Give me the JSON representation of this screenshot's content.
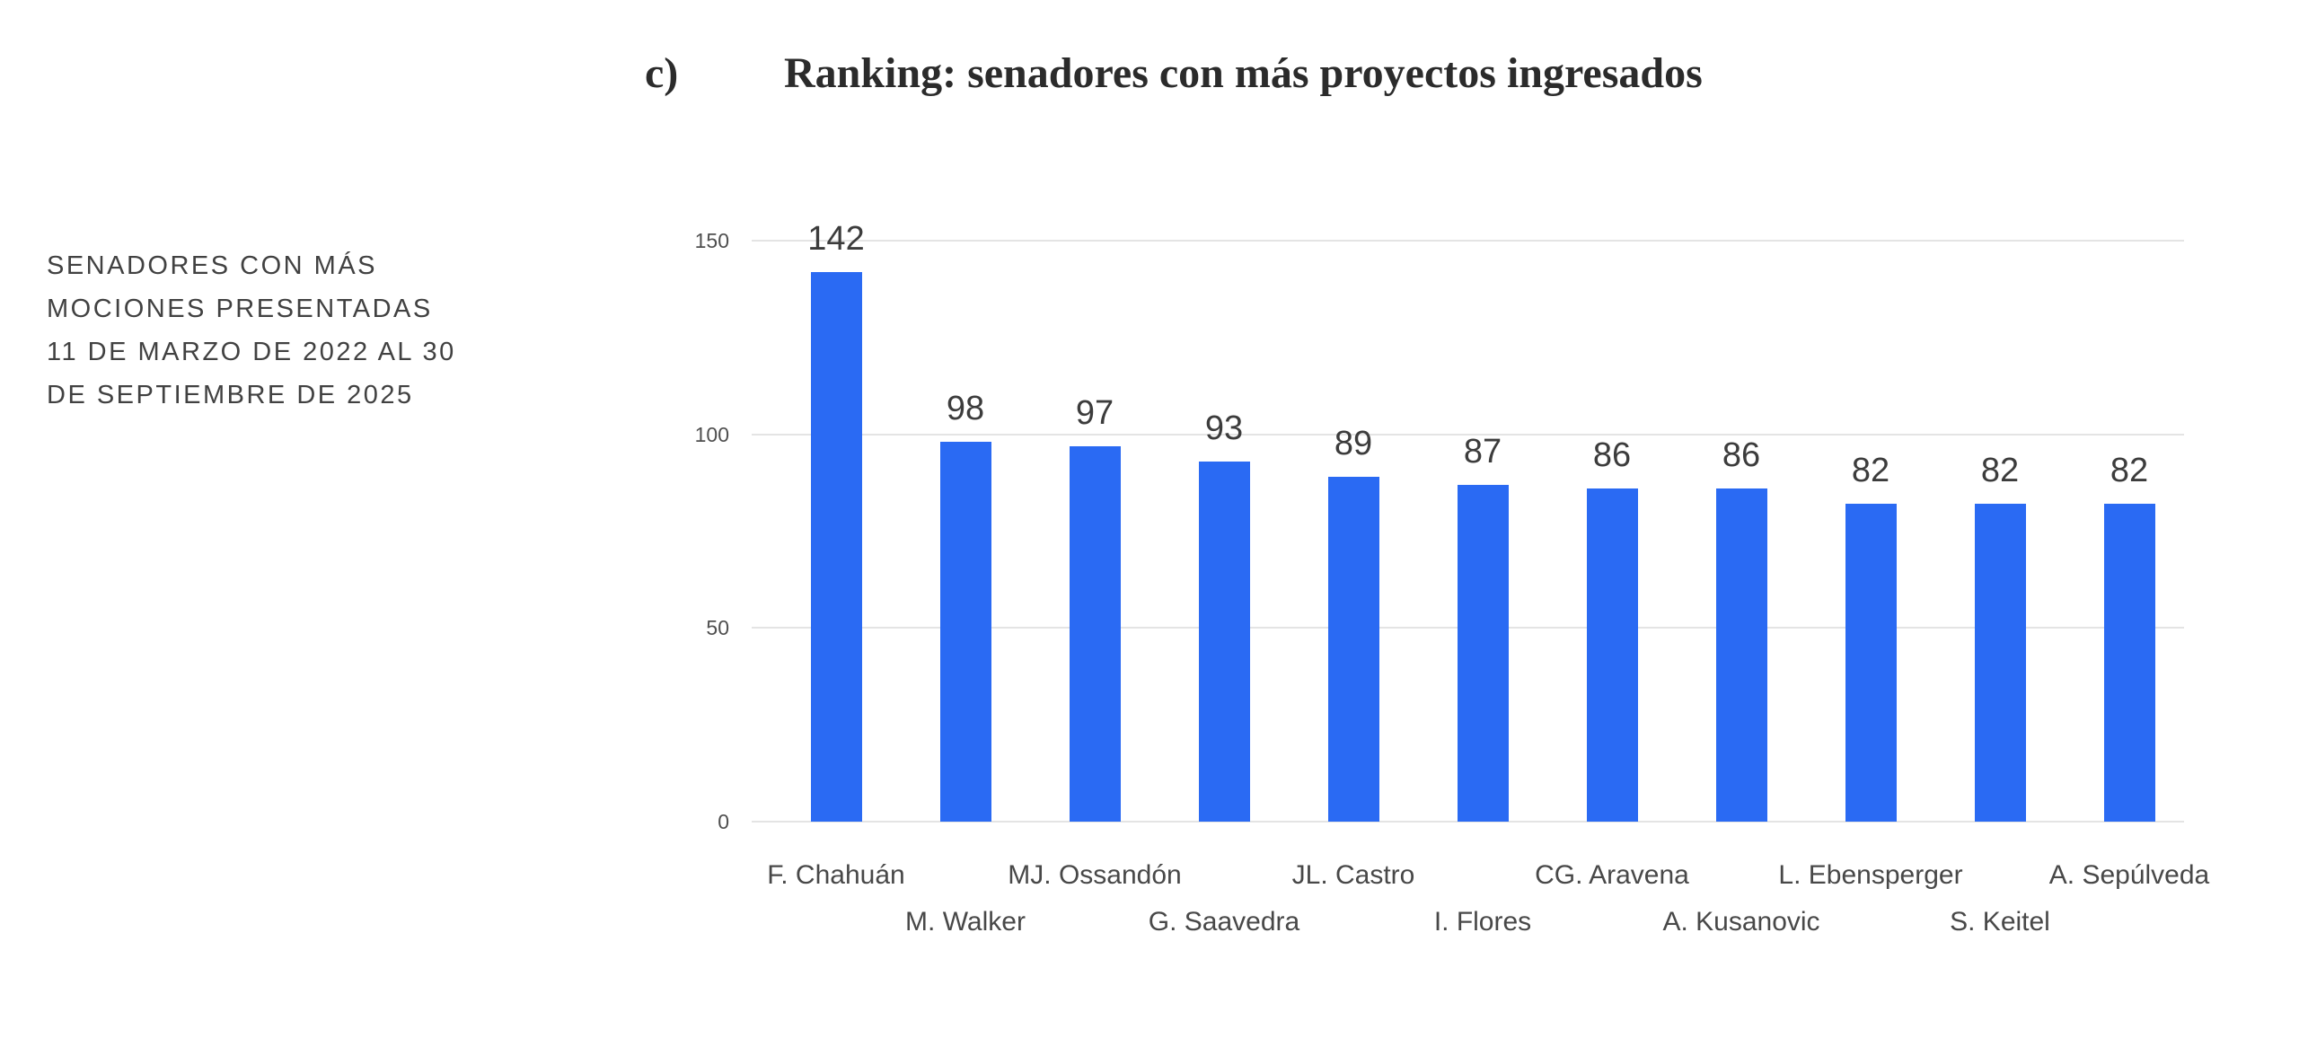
{
  "heading": {
    "index_label": "c)",
    "title": "Ranking: senadores con más proyectos ingresados"
  },
  "note": {
    "lines": [
      "SENADORES CON MÁS",
      "MOCIONES PRESENTADAS",
      "11 DE MARZO DE 2022 AL 30",
      "DE SEPTIEMBRE DE 2025"
    ]
  },
  "chart_data": {
    "type": "bar",
    "title": "Ranking: senadores con más proyectos ingresados",
    "categories": [
      "F. Chahuán",
      "M. Walker",
      "MJ. Ossandón",
      "G. Saavedra",
      "JL. Castro",
      "I. Flores",
      "CG. Aravena",
      "A. Kusanovic",
      "L. Ebensperger",
      "S. Keitel",
      "A. Sepúlveda"
    ],
    "values": [
      142,
      98,
      97,
      93,
      89,
      87,
      86,
      86,
      82,
      82,
      82
    ],
    "value_labels": [
      "142",
      "98",
      "97",
      "93",
      "89",
      "87",
      "86",
      "86",
      "82",
      "82",
      "82"
    ],
    "y_ticks": [
      0,
      50,
      100,
      150
    ],
    "y_tick_labels": [
      "0",
      "50",
      "100",
      "150"
    ],
    "ylim": [
      0,
      150
    ],
    "xlabel": "",
    "ylabel": "",
    "grid": true,
    "legend": false,
    "label_rows": [
      1,
      2,
      1,
      2,
      1,
      2,
      1,
      2,
      1,
      2,
      1
    ]
  },
  "colors": {
    "bar": "#2a6af3",
    "grid": "#e4e4e4",
    "title": "#2b2b2b",
    "note": "#414141",
    "value_label": "#3c3c3c",
    "axis_tick": "#4f4f4f",
    "category_label": "#484848"
  }
}
